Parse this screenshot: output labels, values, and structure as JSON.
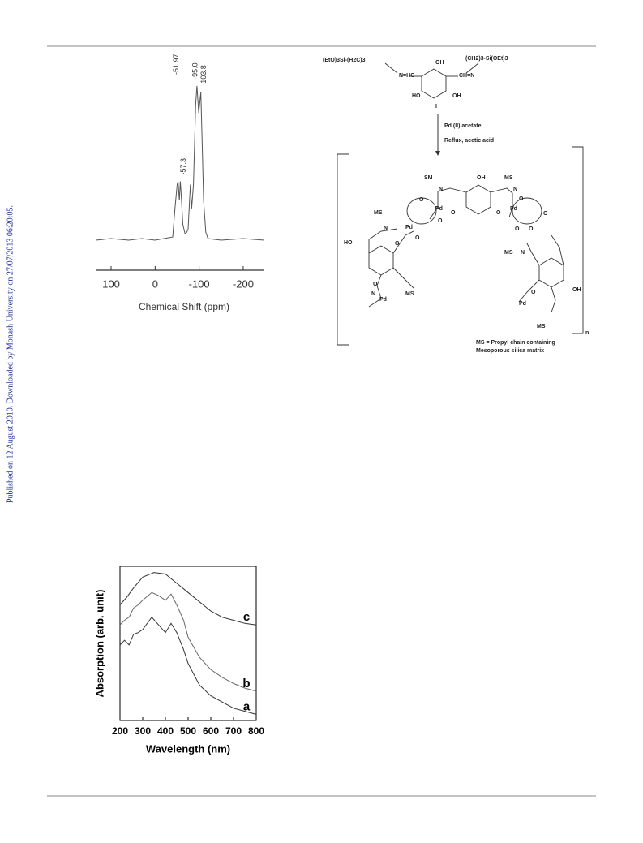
{
  "sidebar": "Published on 12 August 2010. Downloaded by Monash University on 27/07/2013 06:20:05.",
  "chart_data": [
    {
      "type": "line",
      "x_label": "Chemical Shift (ppm)",
      "xlim": [
        135,
        -248
      ],
      "ylim": [
        0,
        100
      ],
      "xticks": [
        100,
        0,
        -100,
        -200
      ],
      "color": "#555555",
      "annotations": [
        {
          "x": -51.97,
          "text": "-51.97"
        },
        {
          "x": -57.3,
          "text": "-57.3"
        },
        {
          "x": -95,
          "text": "-95.0"
        },
        {
          "x": -103.8,
          "text": "-103.8"
        }
      ],
      "x": [
        135,
        100,
        60,
        30,
        0,
        -20,
        -40,
        -45,
        -50,
        -52,
        -55,
        -57.3,
        -60,
        -63,
        -68,
        -72,
        -75,
        -80,
        -83,
        -87,
        -92,
        -95,
        -99,
        -103.8,
        -107,
        -110,
        -115,
        -120,
        -150,
        -200,
        -248
      ],
      "values": [
        0,
        1,
        0,
        1,
        0,
        1,
        2,
        20,
        35,
        37,
        25,
        37,
        25,
        10,
        4,
        5,
        7,
        35,
        20,
        35,
        85,
        97,
        80,
        93,
        60,
        25,
        5,
        1,
        0,
        1,
        0
      ]
    },
    {
      "type": "line",
      "x_label": "Wavelength (nm)",
      "y_label": "Absorption (arb. unit)",
      "xlim": [
        200,
        800
      ],
      "ylim": [
        0,
        1
      ],
      "xticks": [
        200,
        300,
        400,
        500,
        600,
        700,
        800
      ],
      "series": [
        {
          "name": "a",
          "color": "#333333",
          "x": [
            200,
            220,
            240,
            260,
            280,
            300,
            340,
            370,
            400,
            425,
            450,
            480,
            500,
            550,
            600,
            650,
            700,
            750,
            800
          ],
          "values": [
            0.49,
            0.52,
            0.49,
            0.56,
            0.57,
            0.59,
            0.67,
            0.62,
            0.57,
            0.63,
            0.57,
            0.46,
            0.37,
            0.23,
            0.16,
            0.12,
            0.08,
            0.06,
            0.04
          ]
        },
        {
          "name": "b",
          "color": "#666666",
          "x": [
            200,
            220,
            240,
            260,
            280,
            300,
            340,
            370,
            400,
            425,
            450,
            480,
            500,
            550,
            600,
            650,
            700,
            750,
            800
          ],
          "values": [
            0.62,
            0.65,
            0.67,
            0.73,
            0.75,
            0.78,
            0.83,
            0.81,
            0.78,
            0.82,
            0.75,
            0.65,
            0.54,
            0.41,
            0.33,
            0.28,
            0.24,
            0.21,
            0.19
          ]
        },
        {
          "name": "c",
          "color": "#333333",
          "x": [
            200,
            230,
            260,
            300,
            350,
            400,
            450,
            500,
            550,
            600,
            650,
            700,
            750,
            800
          ],
          "values": [
            0.75,
            0.8,
            0.86,
            0.93,
            0.96,
            0.95,
            0.89,
            0.83,
            0.77,
            0.71,
            0.67,
            0.65,
            0.63,
            0.62
          ]
        }
      ]
    }
  ],
  "scheme": {
    "labels": [
      "(EtO)3Si-(H2C)3",
      "N=HC",
      "OH",
      "(CH2)3-Si(OEt)3",
      "CH=N",
      "HO",
      "OH",
      "I",
      "Pd (II) acetate",
      "Reflux, acetic acid",
      "SM",
      "N",
      "OH",
      "MS",
      "N",
      "Pd",
      "Pd",
      "MS",
      "N",
      "Pd",
      "HO",
      "N",
      "MS",
      "Pd",
      "MS",
      "N",
      "OH",
      "Pd",
      "MS",
      "n",
      "MS = Propyl chain containing",
      "Mesoporous silica matrix"
    ]
  }
}
